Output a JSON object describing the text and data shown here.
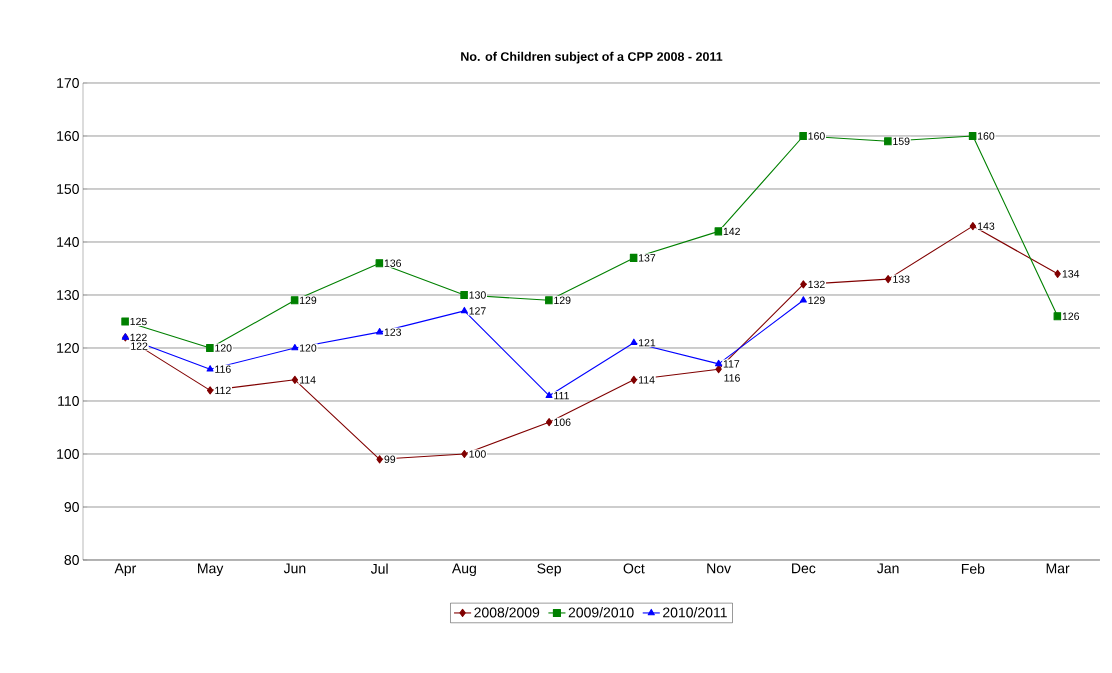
{
  "chart_data": {
    "type": "line",
    "title": "No. of Children subject of a CPP 2008 - 2011",
    "categories": [
      "Apr",
      "May",
      "Jun",
      "Jul",
      "Aug",
      "Sep",
      "Oct",
      "Nov",
      "Dec",
      "Jan",
      "Feb",
      "Mar"
    ],
    "series": [
      {
        "name": "2008/2009",
        "color": "#800000",
        "marker": "diamond",
        "values": [
          122,
          112,
          114,
          99,
          100,
          106,
          114,
          116,
          132,
          133,
          143,
          134
        ]
      },
      {
        "name": "2009/2010",
        "color": "#008000",
        "marker": "square",
        "values": [
          125,
          120,
          129,
          136,
          130,
          129,
          137,
          142,
          160,
          159,
          160,
          126
        ]
      },
      {
        "name": "2010/2011",
        "color": "#0000ff",
        "marker": "triangle",
        "values": [
          122,
          116,
          120,
          123,
          127,
          111,
          121,
          117,
          129,
          null,
          null,
          null
        ]
      }
    ],
    "ylim": [
      80,
      170
    ],
    "yticks": [
      80,
      90,
      100,
      110,
      120,
      130,
      140,
      150,
      160,
      170
    ],
    "grid": "y",
    "legend": "bottom",
    "data_labels": true
  }
}
